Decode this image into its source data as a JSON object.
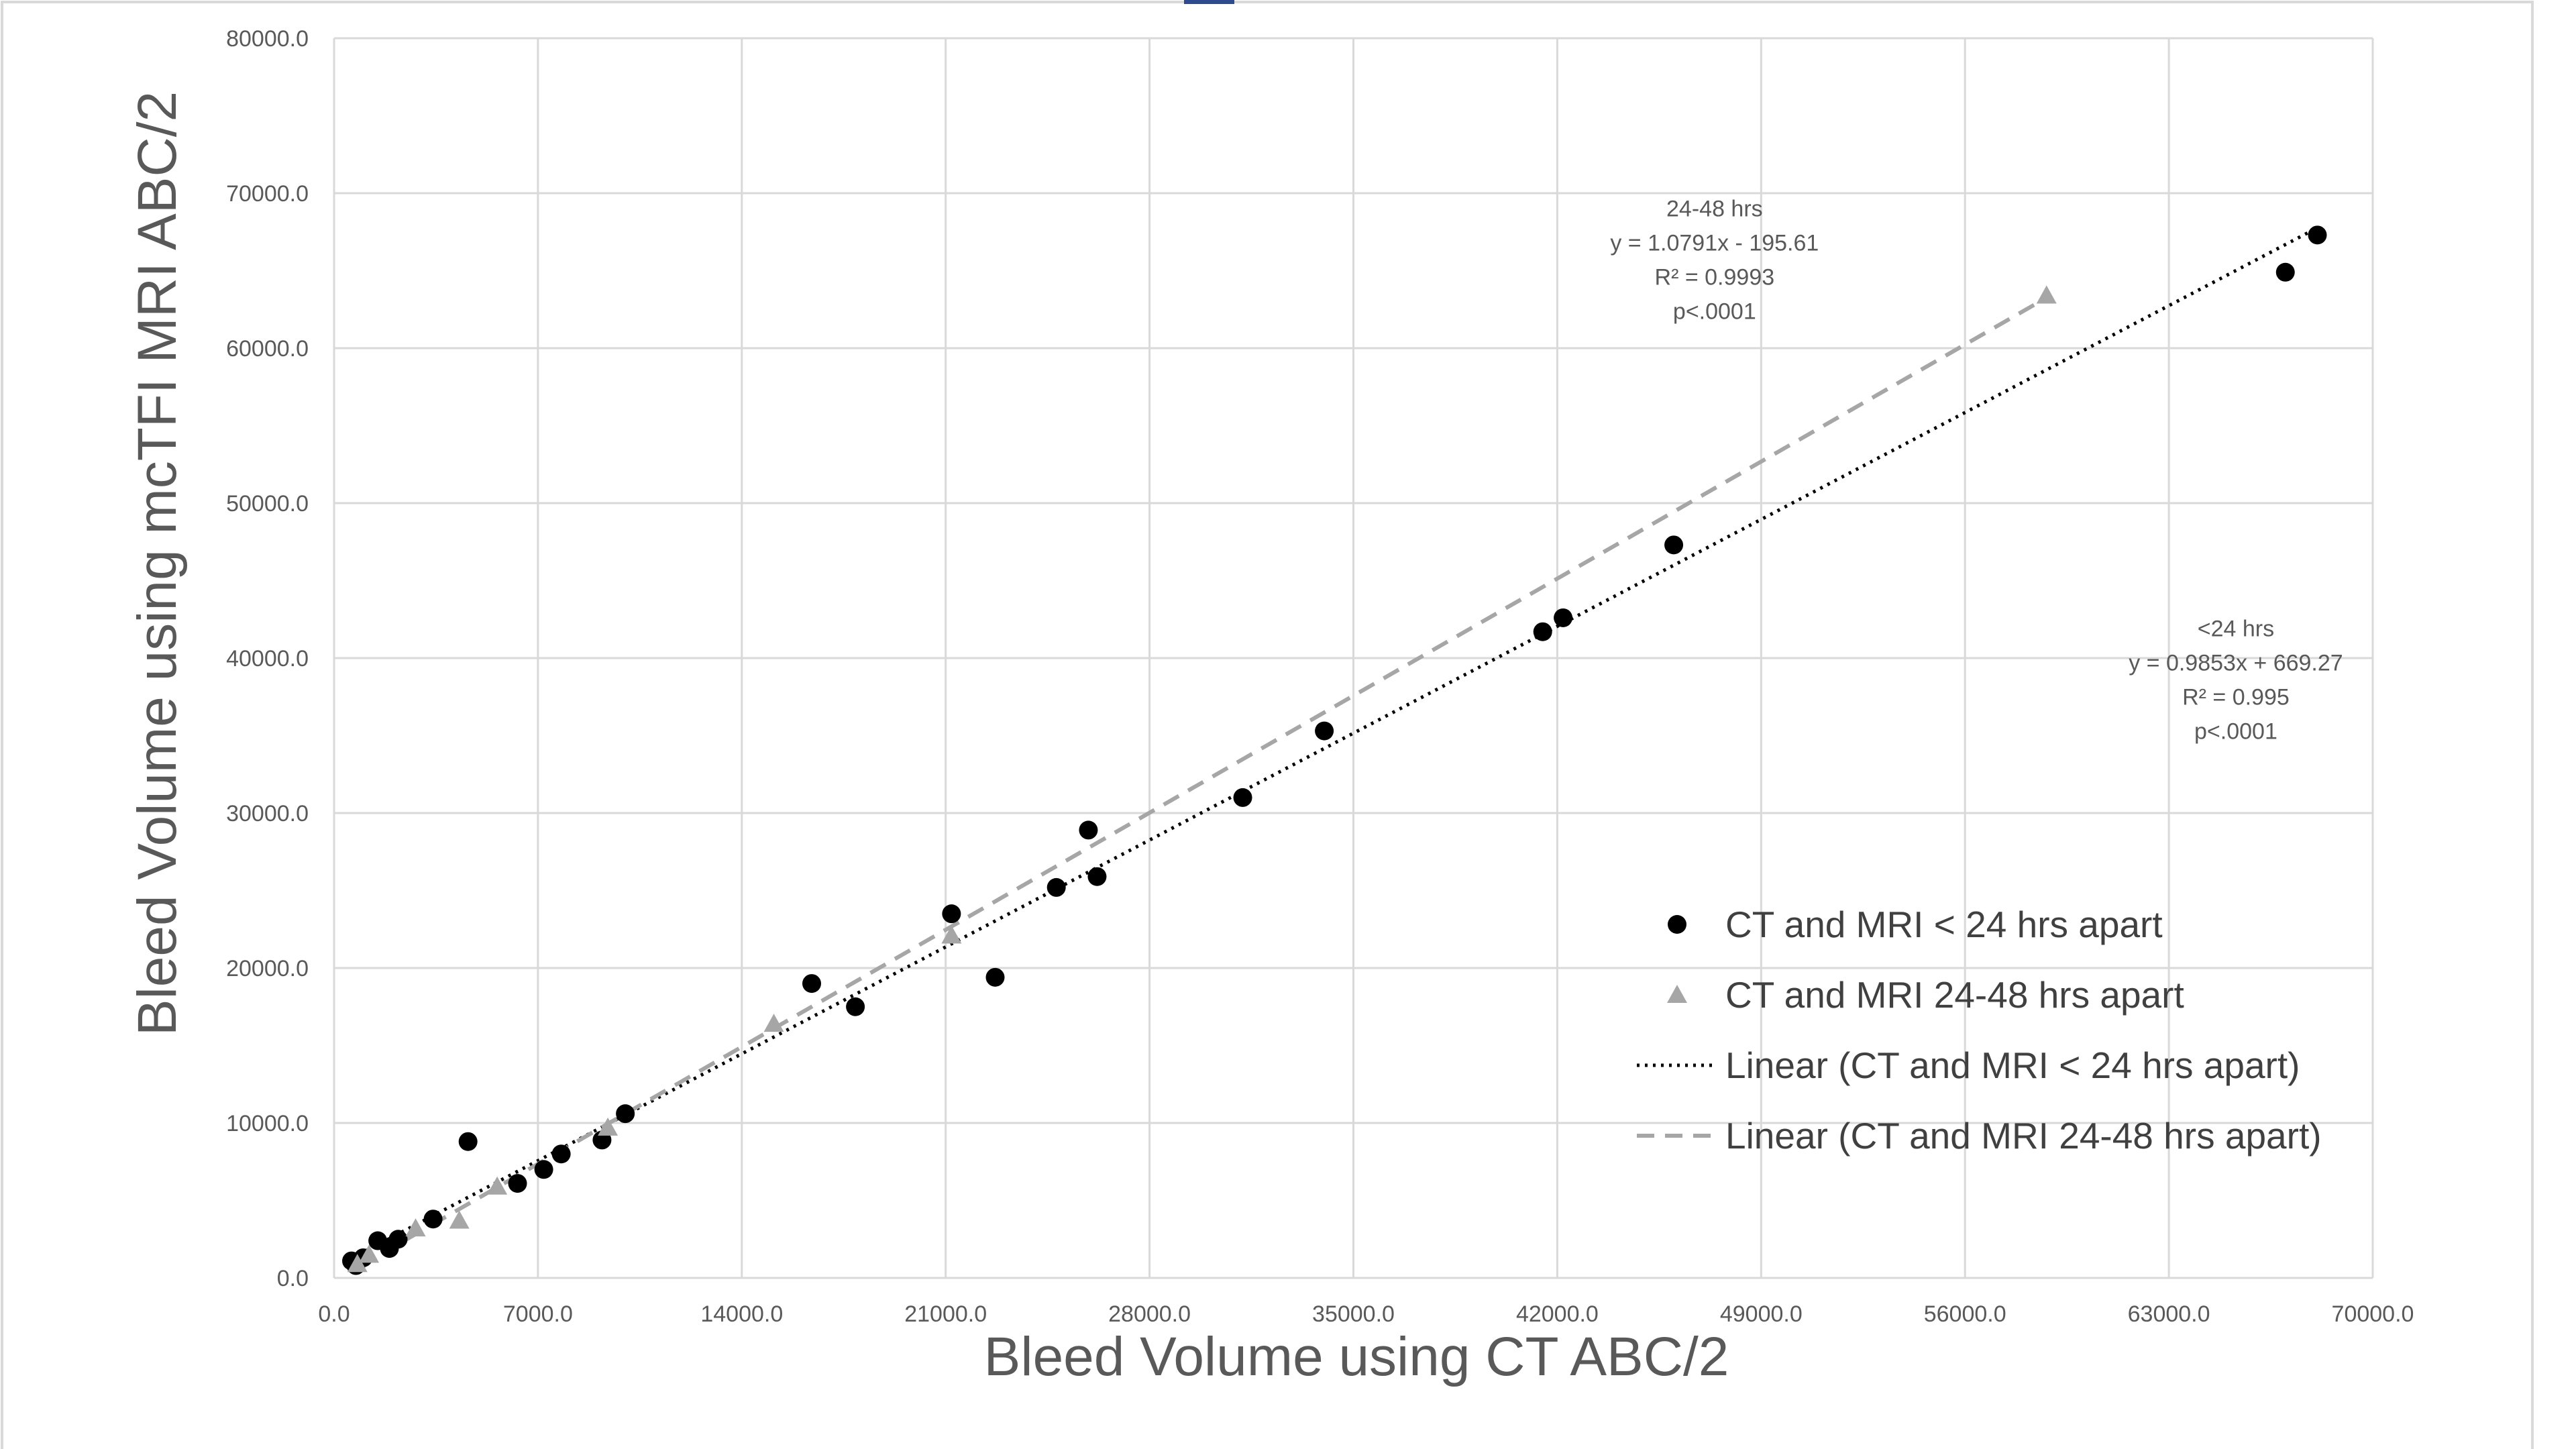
{
  "chart_data": {
    "type": "scatter",
    "title": "",
    "xlabel": "Bleed Volume using CT ABC/2",
    "ylabel": "Bleed Volume using mcTFI MRI ABC/2",
    "xlim": [
      0,
      70000
    ],
    "ylim": [
      0,
      80000
    ],
    "x_ticks": [
      0,
      7000,
      14000,
      21000,
      28000,
      35000,
      42000,
      49000,
      56000,
      63000,
      70000
    ],
    "y_ticks": [
      0,
      10000,
      20000,
      30000,
      40000,
      50000,
      60000,
      70000,
      80000
    ],
    "x_tick_labels": [
      "0.0",
      "7000.0",
      "14000.0",
      "21000.0",
      "28000.0",
      "35000.0",
      "42000.0",
      "49000.0",
      "56000.0",
      "63000.0",
      "70000.0"
    ],
    "y_tick_labels": [
      "0.0",
      "10000.0",
      "20000.0",
      "30000.0",
      "40000.0",
      "50000.0",
      "60000.0",
      "70000.0",
      "80000.0"
    ],
    "grid": true,
    "legend_position": "right",
    "series": [
      {
        "name": "CT and MRI < 24 hrs apart",
        "marker": "circle",
        "color": "#000000",
        "points": [
          [
            600,
            1100
          ],
          [
            750,
            800
          ],
          [
            1000,
            1300
          ],
          [
            1500,
            2400
          ],
          [
            1900,
            1900
          ],
          [
            2200,
            2500
          ],
          [
            3400,
            3800
          ],
          [
            4600,
            8800
          ],
          [
            6300,
            6100
          ],
          [
            7200,
            7000
          ],
          [
            7800,
            8000
          ],
          [
            9200,
            8900
          ],
          [
            10000,
            10600
          ],
          [
            16400,
            19000
          ],
          [
            17900,
            17500
          ],
          [
            21200,
            23500
          ],
          [
            22700,
            19400
          ],
          [
            24800,
            25200
          ],
          [
            25900,
            28900
          ],
          [
            26200,
            25900
          ],
          [
            31200,
            31000
          ],
          [
            34000,
            35300
          ],
          [
            41500,
            41700
          ],
          [
            42200,
            42600
          ],
          [
            46000,
            47300
          ],
          [
            67000,
            64900
          ],
          [
            68100,
            67300
          ]
        ]
      },
      {
        "name": "CT and MRI 24-48 hrs apart",
        "marker": "triangle",
        "color": "#a6a6a6",
        "points": [
          [
            800,
            900
          ],
          [
            1200,
            1500
          ],
          [
            2800,
            3200
          ],
          [
            4300,
            3700
          ],
          [
            5600,
            5900
          ],
          [
            9400,
            9700
          ],
          [
            15100,
            16400
          ],
          [
            21200,
            22100
          ],
          [
            58800,
            63400
          ]
        ]
      },
      {
        "name": "Linear (CT and MRI < 24 hrs apart)",
        "type": "trendline",
        "style": "dotted",
        "color": "#000000",
        "slope": 0.9853,
        "intercept": 669.27,
        "x_range": [
          600,
          68100
        ]
      },
      {
        "name": "Linear (CT and MRI 24-48 hrs apart)",
        "type": "trendline",
        "style": "dashed",
        "color": "#a6a6a6",
        "slope": 1.0791,
        "intercept": -195.61,
        "x_range": [
          800,
          58800
        ]
      }
    ],
    "annotations": [
      {
        "id": "annot-24-48",
        "lines": [
          "24-48 hrs",
          "y = 1.0791x - 195.61",
          "R² = 0.9993",
          "p<.0001"
        ],
        "anchor_data": [
          47400,
          68500
        ]
      },
      {
        "id": "annot-lt24",
        "lines": [
          "<24 hrs",
          "y = 0.9853x + 669.27",
          "R² = 0.995",
          "p<.0001"
        ],
        "anchor_data": [
          65300,
          41400
        ]
      }
    ],
    "legend": [
      {
        "label": "CT and MRI < 24 hrs apart",
        "marker": "circle",
        "color": "#000000"
      },
      {
        "label": "CT and MRI 24-48 hrs apart",
        "marker": "triangle",
        "color": "#a6a6a6"
      },
      {
        "label": "Linear (CT and MRI < 24 hrs apart)",
        "marker": "dotted-line",
        "color": "#000000"
      },
      {
        "label": "Linear (CT and MRI 24-48 hrs apart)",
        "marker": "dashed-line",
        "color": "#a6a6a6"
      }
    ]
  },
  "colors": {
    "gridline": "#d9d9d9",
    "axis_text": "#595959",
    "frame_border": "#d9d9d9",
    "top_accent": "#2f4b8f"
  }
}
